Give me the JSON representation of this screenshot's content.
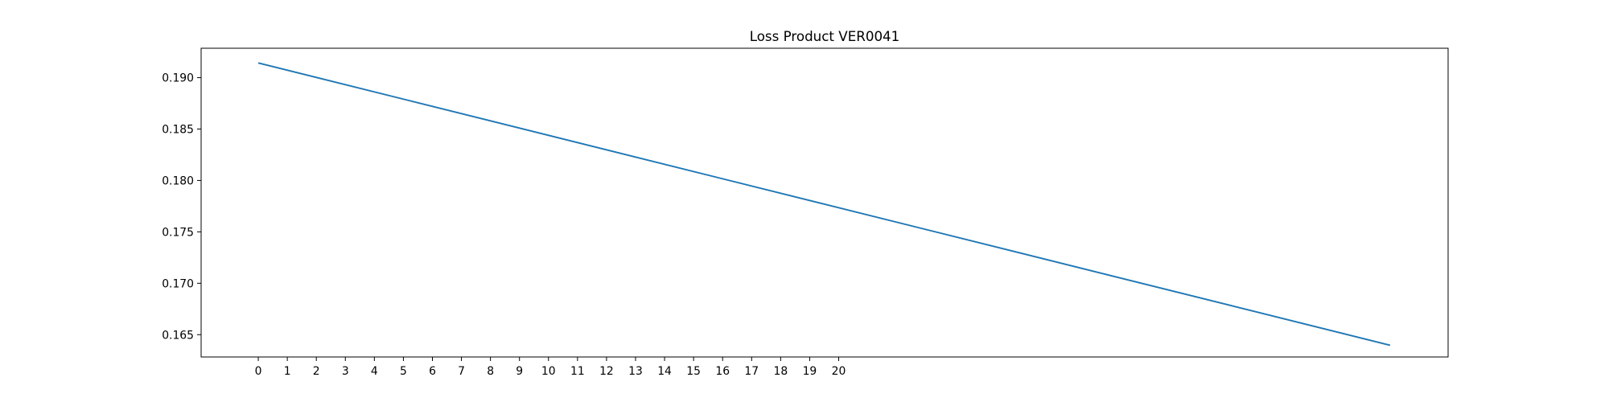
{
  "chart_data": {
    "type": "line",
    "title": "Loss Product VER0041",
    "xlabel": "",
    "ylabel": "",
    "x_ticks": [
      "0",
      "1",
      "2",
      "3",
      "4",
      "5",
      "6",
      "7",
      "8",
      "9",
      "10",
      "11",
      "12",
      "13",
      "14",
      "15",
      "16",
      "17",
      "18",
      "19",
      "20"
    ],
    "y_ticks": [
      "0.165",
      "0.170",
      "0.175",
      "0.180",
      "0.185",
      "0.190"
    ],
    "xlim": [
      -1.97,
      41.0
    ],
    "ylim": [
      0.16283,
      0.19286
    ],
    "grid": false,
    "legend": "none",
    "series": [
      {
        "x": [
          0,
          39
        ],
        "values": [
          0.19143,
          0.16397
        ],
        "color": "#1f77b4"
      }
    ]
  }
}
